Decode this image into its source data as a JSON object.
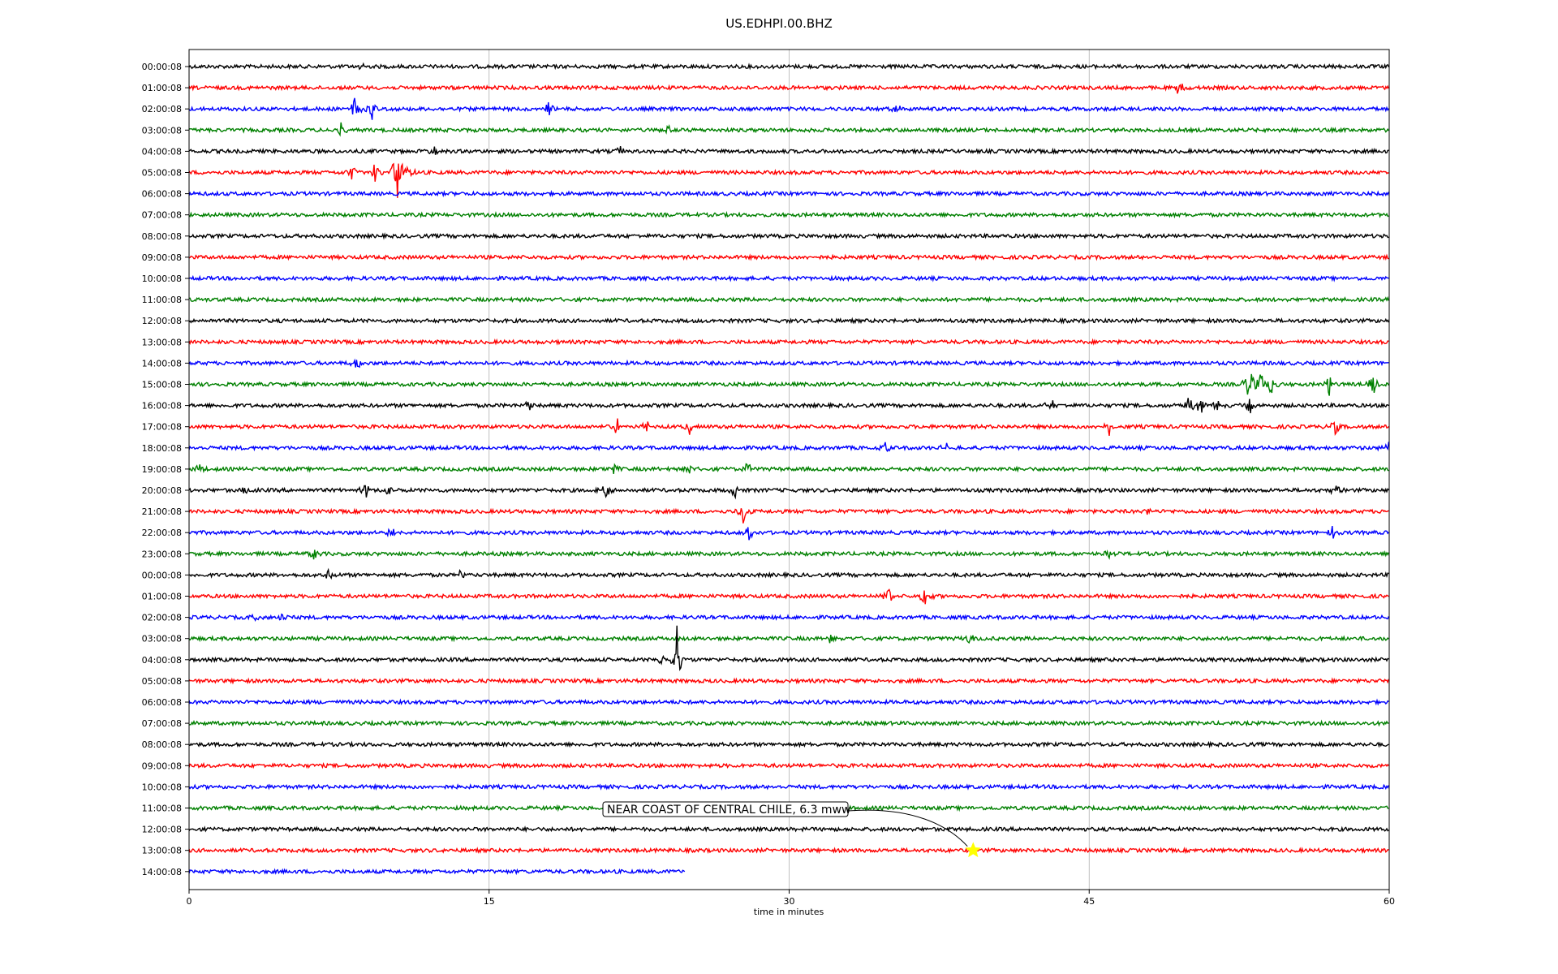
{
  "chart_data": {
    "type": "line",
    "title": "US.EDHPI.00.BHZ",
    "xlabel": "time in minutes",
    "ylabel": "",
    "xlim": [
      0,
      60
    ],
    "xticks": [
      "0",
      "15",
      "30",
      "45",
      "60"
    ],
    "grid": "vertical",
    "series_colors": [
      "#000000",
      "#ff0000",
      "#0000ff",
      "#008000"
    ],
    "row_labels": [
      "00:00:08",
      "01:00:08",
      "02:00:08",
      "03:00:08",
      "04:00:08",
      "05:00:08",
      "06:00:08",
      "07:00:08",
      "08:00:08",
      "09:00:08",
      "10:00:08",
      "11:00:08",
      "12:00:08",
      "13:00:08",
      "14:00:08",
      "15:00:08",
      "16:00:08",
      "17:00:08",
      "18:00:08",
      "19:00:08",
      "20:00:08",
      "21:00:08",
      "22:00:08",
      "23:00:08",
      "00:00:08",
      "01:00:08",
      "02:00:08",
      "03:00:08",
      "04:00:08",
      "05:00:08",
      "06:00:08",
      "07:00:08",
      "08:00:08",
      "09:00:08",
      "10:00:08",
      "11:00:08",
      "12:00:08",
      "13:00:08",
      "14:00:08"
    ],
    "last_row_end_minutes": 24.8,
    "events": [
      {
        "row": 0,
        "at": 8.5,
        "amp": 0.3
      },
      {
        "row": 1,
        "at": 49.5,
        "amp": 0.4
      },
      {
        "row": 2,
        "at": 8.3,
        "amp": 0.9
      },
      {
        "row": 2,
        "at": 9.2,
        "amp": 0.7
      },
      {
        "row": 2,
        "at": 18.0,
        "amp": 0.5
      },
      {
        "row": 2,
        "at": 35.4,
        "amp": 0.3
      },
      {
        "row": 3,
        "at": 7.6,
        "amp": 0.3
      },
      {
        "row": 3,
        "at": 24.0,
        "amp": 0.25
      },
      {
        "row": 4,
        "at": 12.3,
        "amp": 0.3
      },
      {
        "row": 4,
        "at": 21.6,
        "amp": 0.3
      },
      {
        "row": 5,
        "at": 8.1,
        "amp": 0.5
      },
      {
        "row": 5,
        "at": 9.3,
        "amp": 0.5
      },
      {
        "row": 5,
        "at": 10.4,
        "amp": 2.0
      },
      {
        "row": 5,
        "at": 11.0,
        "amp": 0.4
      },
      {
        "row": 14,
        "at": 8.4,
        "amp": 0.3
      },
      {
        "row": 15,
        "at": 53.0,
        "amp": 1.2
      },
      {
        "row": 15,
        "at": 53.6,
        "amp": 0.7
      },
      {
        "row": 15,
        "at": 54.1,
        "amp": 0.6
      },
      {
        "row": 15,
        "at": 57.0,
        "amp": 0.6
      },
      {
        "row": 15,
        "at": 59.2,
        "amp": 0.6
      },
      {
        "row": 16,
        "at": 17.0,
        "amp": 0.3
      },
      {
        "row": 16,
        "at": 43.1,
        "amp": 0.4
      },
      {
        "row": 16,
        "at": 50.0,
        "amp": 0.5
      },
      {
        "row": 16,
        "at": 50.6,
        "amp": 0.5
      },
      {
        "row": 16,
        "at": 51.3,
        "amp": 0.6
      },
      {
        "row": 16,
        "at": 53.0,
        "amp": 0.6
      },
      {
        "row": 17,
        "at": 21.4,
        "amp": 0.4
      },
      {
        "row": 17,
        "at": 22.9,
        "amp": 0.4
      },
      {
        "row": 17,
        "at": 25.0,
        "amp": 0.4
      },
      {
        "row": 17,
        "at": 46.0,
        "amp": 0.4
      },
      {
        "row": 17,
        "at": 57.3,
        "amp": 0.4
      },
      {
        "row": 18,
        "at": 34.8,
        "amp": 0.3
      },
      {
        "row": 18,
        "at": 37.9,
        "amp": 0.3
      },
      {
        "row": 18,
        "at": 59.9,
        "amp": 0.4
      },
      {
        "row": 19,
        "at": 0.5,
        "amp": 0.3
      },
      {
        "row": 19,
        "at": 21.2,
        "amp": 0.3
      },
      {
        "row": 19,
        "at": 25.0,
        "amp": 0.3
      },
      {
        "row": 19,
        "at": 27.9,
        "amp": 0.4
      },
      {
        "row": 20,
        "at": 2.8,
        "amp": 0.3
      },
      {
        "row": 20,
        "at": 8.8,
        "amp": 0.4
      },
      {
        "row": 20,
        "at": 9.9,
        "amp": 0.3
      },
      {
        "row": 20,
        "at": 20.8,
        "amp": 0.5
      },
      {
        "row": 20,
        "at": 27.3,
        "amp": 0.4
      },
      {
        "row": 20,
        "at": 57.3,
        "amp": 0.4
      },
      {
        "row": 21,
        "at": 27.7,
        "amp": 0.9
      },
      {
        "row": 21,
        "at": 48.0,
        "amp": 0.3
      },
      {
        "row": 22,
        "at": 10.1,
        "amp": 0.3
      },
      {
        "row": 22,
        "at": 28.0,
        "amp": 0.4
      },
      {
        "row": 22,
        "at": 57.2,
        "amp": 0.4
      },
      {
        "row": 23,
        "at": 6.2,
        "amp": 0.3
      },
      {
        "row": 23,
        "at": 46.0,
        "amp": 0.3
      },
      {
        "row": 24,
        "at": 7.0,
        "amp": 0.3
      },
      {
        "row": 24,
        "at": 13.6,
        "amp": 0.3
      },
      {
        "row": 25,
        "at": 35.0,
        "amp": 0.5
      },
      {
        "row": 25,
        "at": 36.8,
        "amp": 0.6
      },
      {
        "row": 26,
        "at": 3.4,
        "amp": 0.3
      },
      {
        "row": 26,
        "at": 4.6,
        "amp": 0.3
      },
      {
        "row": 27,
        "at": 32.0,
        "amp": 0.3
      },
      {
        "row": 27,
        "at": 39.0,
        "amp": 0.3
      },
      {
        "row": 28,
        "at": 23.7,
        "amp": 0.4
      },
      {
        "row": 28,
        "at": 24.4,
        "amp": 1.8
      },
      {
        "row": 37,
        "at": 51.5,
        "amp": 0.2
      }
    ],
    "annotations": [
      {
        "text": "NEAR COAST OF CENTRAL CHILE, 6.3 mww",
        "row": 37,
        "at": 39.2,
        "marker": "star",
        "marker_color": "#ffff00"
      }
    ]
  }
}
